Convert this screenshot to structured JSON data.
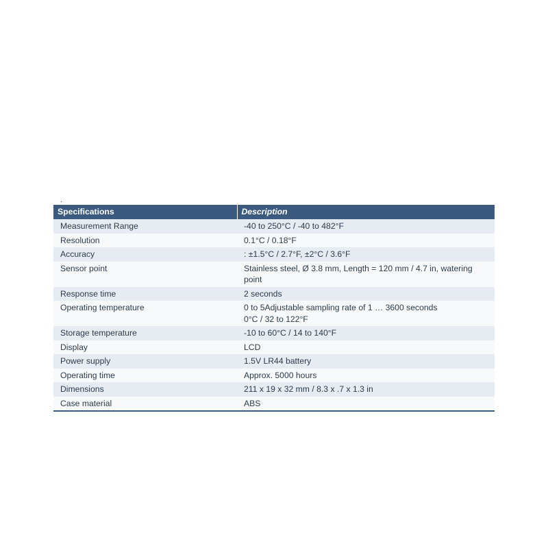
{
  "table": {
    "header": {
      "spec": "Specifications",
      "desc": "Description"
    },
    "rows": [
      {
        "zebra": "even",
        "spec": "Measurement Range",
        "desc": "-40 to 250°C / -40 to 482°F"
      },
      {
        "zebra": "odd",
        "spec": "Resolution",
        "desc": "0.1°C / 0.18°F"
      },
      {
        "zebra": "even",
        "spec": "Accuracy",
        "desc": " : ±1.5°C / 2.7°F, ±2°C / 3.6°F"
      },
      {
        "zebra": "odd",
        "spec": "Sensor point",
        "desc": "Stainless steel, Ø 3.8 mm, Length = 120 mm / 4.7 in, watering point"
      },
      {
        "zebra": "even",
        "spec": "Response time",
        "desc": "2 seconds"
      },
      {
        "zebra": "odd",
        "spec": " Operating temperature",
        "desc": " 0 to 5Adjustable sampling rate of 1 … 3600 seconds",
        "desc2": "0°C / 32 to 122°F"
      },
      {
        "zebra": "even",
        "spec": "Storage temperature",
        "desc": "-10 to 60°C / 14 to 140°F"
      },
      {
        "zebra": "odd",
        "spec": "Display",
        "desc": "LCD"
      },
      {
        "zebra": "even",
        "spec": "Power supply",
        "desc": "1.5V LR44 battery"
      },
      {
        "zebra": "odd",
        "spec": "Operating time",
        "desc": "Approx. 5000 hours"
      },
      {
        "zebra": "even",
        "spec": "Dimensions",
        "desc": "211 x 19 x 32 mm / 8.3 x .7 x 1.3 in"
      },
      {
        "zebra": "odd",
        "spec": "Case material",
        "desc": "ABS"
      }
    ]
  },
  "colors": {
    "headerBg": "#3c5a80",
    "headerText": "#ffffff",
    "rowEven": "#e6ecf1",
    "rowOdd": "#f7f9fb",
    "text": "#2d3a4a",
    "bottomBorder": "#385a82"
  },
  "layout": {
    "tableLeft": 78,
    "tableTop": 286,
    "tableWidth": 644,
    "col1Width": 252
  }
}
